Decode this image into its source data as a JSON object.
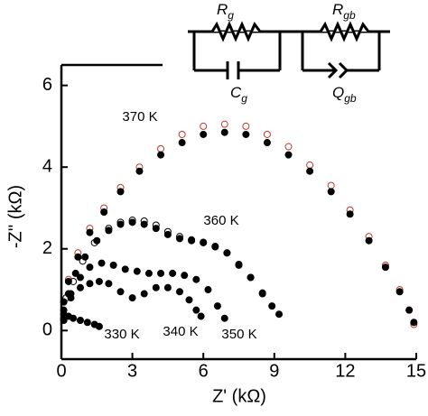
{
  "chart_data": {
    "type": "scatter",
    "x_label": "Z' (kΩ)",
    "y_label": "-Z'' (kΩ)",
    "xlim": [
      0,
      15
    ],
    "ylim": [
      -0.7,
      6.5
    ],
    "xticks": [
      0,
      3,
      6,
      9,
      12,
      15
    ],
    "yticks": [
      0,
      2,
      4,
      6
    ],
    "annotations": [
      "370 K",
      "360 K",
      "350 K",
      "340 K",
      "330 K"
    ],
    "circuit": [
      {
        "main": "R",
        "sub": "g"
      },
      {
        "main": "C",
        "sub": "g"
      },
      {
        "main": "R",
        "sub": "gb"
      },
      {
        "main": "Q",
        "sub": "gb"
      }
    ],
    "series": [
      {
        "color": "#c0392b",
        "filled": false,
        "x": [
          0.1,
          0.3,
          0.7,
          1.2,
          1.8,
          2.5,
          3.3,
          4.2,
          5.1,
          6.0,
          6.9,
          7.8,
          8.7,
          9.6,
          10.5,
          11.4,
          12.2,
          13.0,
          13.7,
          14.3,
          14.7,
          14.9
        ],
        "values": [
          0.7,
          1.25,
          1.9,
          2.5,
          3.0,
          3.5,
          4.0,
          4.45,
          4.8,
          5.0,
          5.05,
          5.0,
          4.8,
          4.5,
          4.05,
          3.55,
          2.95,
          2.3,
          1.6,
          1.0,
          0.5,
          0.15
        ]
      },
      {
        "color": "#000000",
        "filled": true,
        "x": [
          0.1,
          0.3,
          0.7,
          1.2,
          1.8,
          2.5,
          3.3,
          4.2,
          5.1,
          6.0,
          6.9,
          7.8,
          8.7,
          9.6,
          10.5,
          11.4,
          12.2,
          13.0,
          13.7,
          14.3,
          14.7,
          14.9
        ],
        "values": [
          0.7,
          1.2,
          1.8,
          2.4,
          2.9,
          3.4,
          3.9,
          4.3,
          4.6,
          4.8,
          4.85,
          4.8,
          4.6,
          4.3,
          3.9,
          3.4,
          2.85,
          2.2,
          1.55,
          0.95,
          0.5,
          0.2
        ]
      },
      {
        "color": "#000000",
        "filled": false,
        "x": [
          0.2,
          0.5,
          0.9,
          1.4,
          2.0,
          2.5,
          3.0,
          3.5,
          4.0,
          4.5,
          5.0,
          5.5,
          6.0,
          6.5,
          7.0,
          7.5,
          8.0,
          8.5
        ],
        "values": [
          0.8,
          1.2,
          1.7,
          2.15,
          2.5,
          2.65,
          2.7,
          2.68,
          2.58,
          2.42,
          2.3,
          2.22,
          2.16,
          2.06,
          1.9,
          1.62,
          1.3,
          0.92
        ]
      },
      {
        "color": "#000000",
        "filled": true,
        "x": [
          0.1,
          0.3,
          0.6,
          1.0,
          1.5,
          2.0,
          2.5,
          3.0,
          3.5,
          4.0,
          4.5,
          5.0,
          5.5,
          6.0,
          6.5,
          7.0,
          7.5,
          8.0,
          8.5,
          8.9,
          9.2
        ],
        "values": [
          0.5,
          0.9,
          1.4,
          1.8,
          2.2,
          2.45,
          2.6,
          2.65,
          2.6,
          2.5,
          2.35,
          2.25,
          2.2,
          2.15,
          2.05,
          1.9,
          1.6,
          1.3,
          0.9,
          0.6,
          0.4
        ]
      },
      {
        "color": "#000000",
        "filled": true,
        "x": [
          0.1,
          0.4,
          0.8,
          1.2,
          1.7,
          2.2,
          2.7,
          3.2,
          3.7,
          4.2,
          4.7,
          5.2,
          5.7,
          6.2,
          6.6,
          6.9
        ],
        "values": [
          0.4,
          0.9,
          1.3,
          1.55,
          1.65,
          1.6,
          1.5,
          1.45,
          1.4,
          1.4,
          1.4,
          1.35,
          1.25,
          1.0,
          0.6,
          0.3
        ]
      },
      {
        "color": "#000000",
        "filled": true,
        "x": [
          0.1,
          0.4,
          0.8,
          1.2,
          1.6,
          2.0,
          2.5,
          3.0,
          3.5,
          4.0,
          4.5,
          5.0,
          5.4,
          5.7,
          5.9
        ],
        "values": [
          0.3,
          0.8,
          1.05,
          1.15,
          1.2,
          1.15,
          0.95,
          0.8,
          0.9,
          1.05,
          1.05,
          0.95,
          0.75,
          0.5,
          0.35
        ]
      },
      {
        "color": "#000000",
        "filled": true,
        "x": [
          0.1,
          0.3,
          0.5,
          0.8,
          1.1,
          1.4,
          1.6
        ],
        "values": [
          0.25,
          0.35,
          0.3,
          0.25,
          0.2,
          0.15,
          0.1
        ]
      }
    ]
  }
}
